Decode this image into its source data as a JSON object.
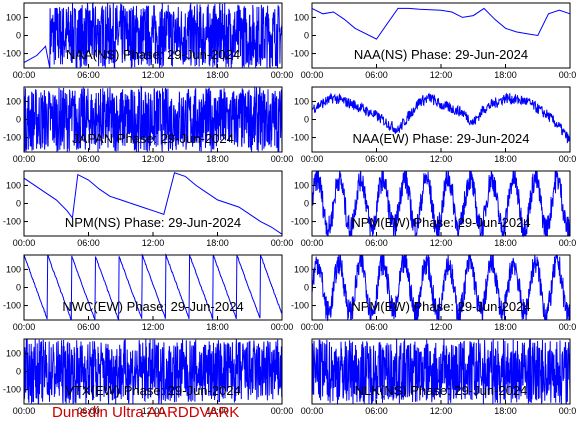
{
  "footer_text": "Dunedin Ultra AARDDVARK",
  "colors": {
    "trace": "#0000ff",
    "axes": "#000000",
    "footer": "#cc0000"
  },
  "chart_data": [
    {
      "type": "line",
      "title": "NAA(NS) Phase: 29-Jun-2024",
      "x_tick_labels": [
        "00:00",
        "06:00",
        "12:00",
        "18:00",
        "00:00"
      ],
      "y_tick_labels": [
        "100",
        "0",
        "-100"
      ],
      "ylim": [
        -180,
        180
      ],
      "xlim": [
        0,
        24
      ],
      "pattern": "dense_late_start",
      "series": [
        {
          "x": [
            0,
            2.2,
            2.5,
            24
          ],
          "y": [
            -150,
            -80,
            180,
            180
          ]
        }
      ]
    },
    {
      "type": "line",
      "title": "NAA(NS) Phase: 29-Jun-2024",
      "x_tick_labels": [
        "00:00",
        "06:00",
        "12:00",
        "18:00",
        "00:00"
      ],
      "y_tick_labels": [
        "100",
        "0",
        "-100"
      ],
      "ylim": [
        -180,
        180
      ],
      "xlim": [
        0,
        24
      ],
      "pattern": "wraps_with_hump",
      "series": [
        {
          "x": [
            0,
            1,
            2,
            3,
            4,
            6,
            8,
            9,
            10,
            12,
            13,
            14,
            15,
            16,
            17,
            18,
            19,
            20,
            21,
            22,
            23,
            24
          ],
          "y": [
            150,
            120,
            130,
            90,
            40,
            -20,
            150,
            150,
            145,
            140,
            130,
            100,
            110,
            150,
            90,
            40,
            20,
            10,
            0,
            120,
            140,
            120
          ]
        }
      ]
    },
    {
      "type": "line",
      "title": "JAPAN Phase: 29-Jun-2024",
      "x_tick_labels": [
        "00:00",
        "06:00",
        "12:00",
        "18:00",
        "00:00"
      ],
      "y_tick_labels": [
        "100",
        "0",
        "-100"
      ],
      "ylim": [
        -180,
        180
      ],
      "xlim": [
        0,
        24
      ],
      "pattern": "dense_full",
      "series": [
        {
          "x": [
            0,
            24
          ],
          "y": [
            -180,
            180
          ]
        }
      ]
    },
    {
      "type": "line",
      "title": "NAA(EW) Phase: 29-Jun-2024",
      "x_tick_labels": [
        "00:00",
        "06:00",
        "12:00",
        "18:00",
        "00:00"
      ],
      "y_tick_labels": [
        "100",
        "0",
        "-100"
      ],
      "ylim": [
        -180,
        180
      ],
      "xlim": [
        0,
        24
      ],
      "pattern": "band_noisy",
      "series": [
        {
          "x": [
            0,
            2,
            4,
            6,
            8,
            10,
            11,
            12,
            14,
            15,
            16,
            18,
            20,
            22,
            23,
            24
          ],
          "y": [
            60,
            120,
            80,
            20,
            -60,
            100,
            120,
            80,
            40,
            -20,
            60,
            120,
            100,
            20,
            -40,
            -120
          ]
        }
      ]
    },
    {
      "type": "line",
      "title": "NPM(NS) Phase: 29-Jun-2024",
      "x_tick_labels": [
        "00:00",
        "06:00",
        "12:00",
        "18:00",
        "00:00"
      ],
      "y_tick_labels": [
        "100",
        "0",
        "-100"
      ],
      "ylim": [
        -180,
        180
      ],
      "xlim": [
        0,
        24
      ],
      "pattern": "smooth_decline",
      "series": [
        {
          "x": [
            0,
            1,
            2,
            3,
            4,
            4.5,
            5,
            6,
            7,
            8,
            9,
            10,
            11,
            12,
            13,
            14,
            15,
            16,
            17,
            18,
            19,
            20,
            21,
            22,
            23,
            24
          ],
          "y": [
            140,
            100,
            60,
            20,
            -40,
            -80,
            160,
            130,
            80,
            40,
            20,
            0,
            -20,
            -40,
            -60,
            170,
            150,
            100,
            60,
            20,
            0,
            -20,
            -60,
            -100,
            -130,
            -170
          ]
        }
      ]
    },
    {
      "type": "line",
      "title": "NPM(EW) Phase: 29-Jun-2024",
      "x_tick_labels": [
        "00:00",
        "06:00",
        "12:00",
        "18:00",
        "00:00"
      ],
      "y_tick_labels": [
        "100",
        "0",
        "-100"
      ],
      "ylim": [
        -180,
        180
      ],
      "xlim": [
        0,
        24
      ],
      "pattern": "sawtooth_dense",
      "series": [
        {
          "x": [
            0,
            24
          ],
          "y": [
            -180,
            180
          ]
        }
      ]
    },
    {
      "type": "line",
      "title": "NWC(EW) Phase: 29-Jun-2024",
      "x_tick_labels": [
        "00:00",
        "06:00",
        "12:00",
        "18:00",
        "00:00"
      ],
      "y_tick_labels": [
        "100",
        "0",
        "-100"
      ],
      "ylim": [
        -180,
        180
      ],
      "xlim": [
        0,
        24
      ],
      "pattern": "sawtooth",
      "series": [
        {
          "x": [
            0,
            24
          ],
          "y": [
            180,
            -180
          ]
        }
      ]
    },
    {
      "type": "line",
      "title": "NPM(EW) Phase: 29-Jun-2024",
      "x_tick_labels": [
        "00:00",
        "06:00",
        "12:00",
        "18:00",
        "00:00"
      ],
      "y_tick_labels": [
        "100",
        "0",
        "-100"
      ],
      "ylim": [
        -180,
        180
      ],
      "xlim": [
        0,
        24
      ],
      "pattern": "sawtooth_dense",
      "series": [
        {
          "x": [
            0,
            24
          ],
          "y": [
            -180,
            180
          ]
        }
      ]
    },
    {
      "type": "line",
      "title": "VTX(EW) Phase: 29-Jun-2024",
      "x_tick_labels": [
        "00:00",
        "06:00",
        "12:00",
        "18:00",
        "00:00"
      ],
      "y_tick_labels": [
        "100",
        "0",
        "-100"
      ],
      "ylim": [
        -180,
        180
      ],
      "xlim": [
        0,
        24
      ],
      "pattern": "noise",
      "series": [
        {
          "x": [
            0,
            24
          ],
          "y": [
            -180,
            180
          ]
        }
      ]
    },
    {
      "type": "line",
      "title": "NLK(NS) Phase: 29-Jun-2024",
      "x_tick_labels": [
        "00:00",
        "06:00",
        "12:00",
        "18:00",
        "00:00"
      ],
      "y_tick_labels": [],
      "ylim": [
        -180,
        180
      ],
      "xlim": [
        0,
        24
      ],
      "pattern": "dense_full_lines",
      "series": [
        {
          "x": [
            0,
            24
          ],
          "y": [
            -180,
            180
          ]
        }
      ]
    }
  ]
}
